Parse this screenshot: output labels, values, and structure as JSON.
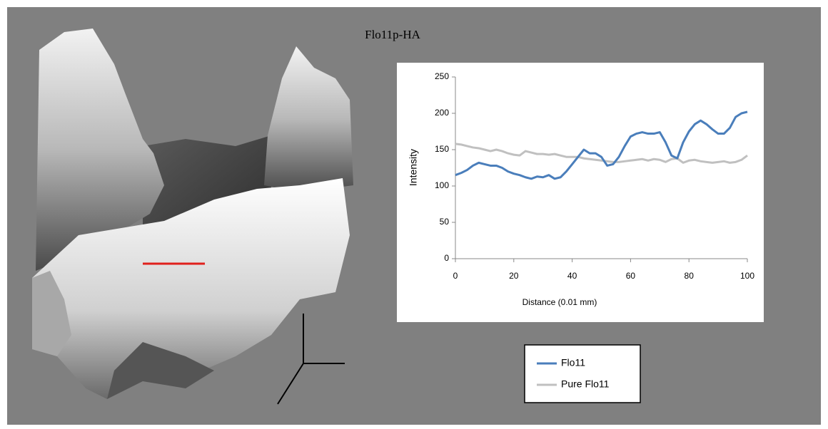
{
  "chart_data": {
    "type": "line",
    "title": "Flo11p-HA",
    "x_label": "Distance (0.01 mm)",
    "y_label": "Intensity",
    "x": [
      0,
      2,
      4,
      6,
      8,
      10,
      12,
      14,
      16,
      18,
      20,
      22,
      24,
      26,
      28,
      30,
      32,
      34,
      36,
      38,
      40,
      42,
      44,
      46,
      48,
      50,
      52,
      54,
      56,
      58,
      60,
      62,
      64,
      66,
      68,
      70,
      72,
      74,
      76,
      78,
      80,
      82,
      84,
      86,
      88,
      90,
      92,
      94,
      96,
      98,
      100
    ],
    "series": [
      {
        "name": "Flo11",
        "color": "#4a7ebb",
        "values": [
          115,
          118,
          122,
          128,
          132,
          130,
          128,
          128,
          125,
          120,
          117,
          115,
          112,
          110,
          113,
          112,
          115,
          110,
          112,
          120,
          130,
          140,
          150,
          145,
          145,
          140,
          128,
          130,
          140,
          155,
          168,
          172,
          174,
          172,
          172,
          174,
          160,
          142,
          138,
          160,
          175,
          185,
          190,
          185,
          178,
          172,
          172,
          180,
          195,
          200,
          202
        ]
      },
      {
        "name": "Pure Flo11",
        "color": "#c0c0c0",
        "values": [
          158,
          157,
          155,
          153,
          152,
          150,
          148,
          150,
          148,
          145,
          143,
          142,
          148,
          146,
          144,
          144,
          143,
          144,
          142,
          140,
          140,
          140,
          138,
          137,
          136,
          135,
          134,
          133,
          133,
          134,
          135,
          136,
          137,
          135,
          137,
          136,
          133,
          137,
          138,
          132,
          135,
          136,
          134,
          133,
          132,
          133,
          134,
          132,
          133,
          136,
          142
        ]
      }
    ],
    "xlim": [
      0,
      100
    ],
    "xticks": [
      0,
      20,
      40,
      60,
      80,
      100
    ],
    "ylim": [
      0,
      250
    ],
    "yticks": [
      0,
      50,
      100,
      150,
      200,
      250
    ]
  }
}
